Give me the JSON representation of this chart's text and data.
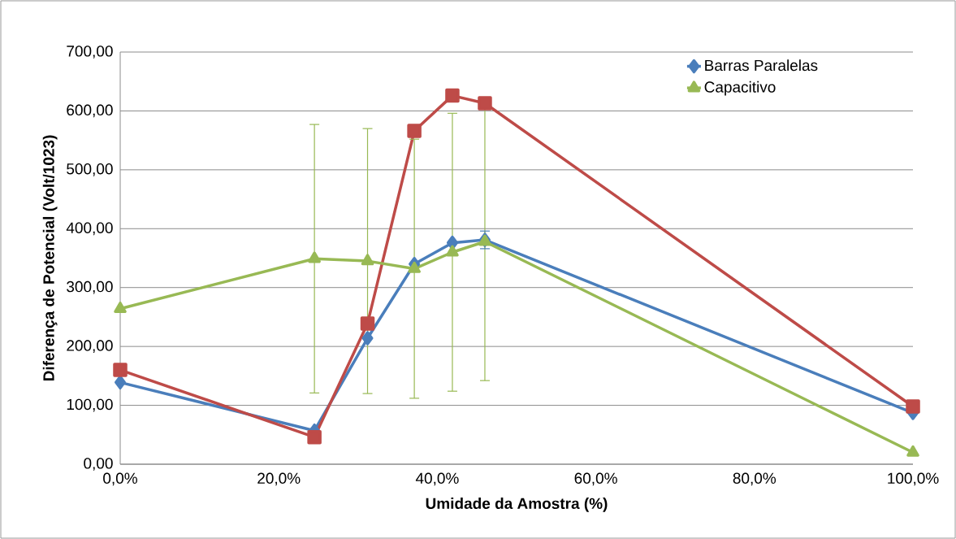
{
  "chart_data": {
    "type": "line",
    "xlabel": "Umidade da Amostra (%)",
    "ylabel": "Diferença de Potencial (Volt/1023)",
    "x": [
      0,
      24.5,
      31.2,
      37.1,
      41.9,
      46.0,
      100
    ],
    "series": [
      {
        "name": "Barras Paralelas",
        "color": "#4a7ebb",
        "marker": "diamond",
        "values": [
          139,
          57,
          214,
          340,
          376,
          381,
          87
        ],
        "errors": [
          null,
          null,
          null,
          null,
          null,
          15,
          null
        ]
      },
      {
        "color": "#be4b48",
        "marker": "square",
        "values": [
          160,
          46,
          239,
          566,
          626,
          613,
          98
        ]
      },
      {
        "name": "Capacitivo",
        "color": "#98b954",
        "marker": "triangle",
        "values": [
          264,
          349,
          345,
          332,
          360,
          378,
          20
        ],
        "errors": [
          null,
          228,
          225,
          220,
          236,
          236,
          null
        ]
      }
    ],
    "xlim": [
      0,
      100
    ],
    "xticks": [
      {
        "value": 0,
        "label": "0,0%"
      },
      {
        "value": 20,
        "label": "20,0%"
      },
      {
        "value": 40,
        "label": "40,0%"
      },
      {
        "value": 60,
        "label": "60,0%"
      },
      {
        "value": 80,
        "label": "80,0%"
      },
      {
        "value": 100,
        "label": "100,0%"
      }
    ],
    "ylim": [
      0,
      700
    ],
    "yticks": [
      {
        "value": 0,
        "label": "0,00"
      },
      {
        "value": 100,
        "label": "100,00"
      },
      {
        "value": 200,
        "label": "200,00"
      },
      {
        "value": 300,
        "label": "300,00"
      },
      {
        "value": 400,
        "label": "400,00"
      },
      {
        "value": 500,
        "label": "500,00"
      },
      {
        "value": 600,
        "label": "600,00"
      },
      {
        "value": 700,
        "label": "700,00"
      }
    ],
    "grid": "y",
    "legend": "top right",
    "line_style": "solid"
  }
}
